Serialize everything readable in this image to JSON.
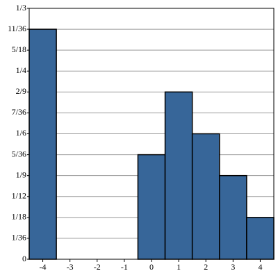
{
  "chart_data": {
    "type": "bar",
    "categories": [
      "-4",
      "-3",
      "-2",
      "-1",
      "0",
      "1",
      "2",
      "3",
      "4"
    ],
    "values": [
      0.30556,
      0,
      0,
      0,
      0.13889,
      0.22222,
      0.16667,
      0.11111,
      0.05556
    ],
    "color": "#376699",
    "ylim": [
      0,
      0.33333
    ],
    "yticks": [
      0,
      {
        "value": 0.02778,
        "label": "1/36"
      },
      {
        "value": 0.05556,
        "label": "1/18"
      },
      {
        "value": 0.08333,
        "label": "1/12"
      },
      {
        "value": 0.11111,
        "label": "1/9"
      },
      {
        "value": 0.13889,
        "label": "5/36"
      },
      {
        "value": 0.16667,
        "label": "1/6"
      },
      {
        "value": 0.19444,
        "label": "7/36"
      },
      {
        "value": 0.22222,
        "label": "2/9"
      },
      {
        "value": 0.25,
        "label": "1/4"
      },
      {
        "value": 0.27778,
        "label": "5/18"
      },
      {
        "value": 0.30556,
        "label": "11/36"
      },
      {
        "value": 0.33333,
        "label": "1/3"
      }
    ],
    "grid": true
  }
}
